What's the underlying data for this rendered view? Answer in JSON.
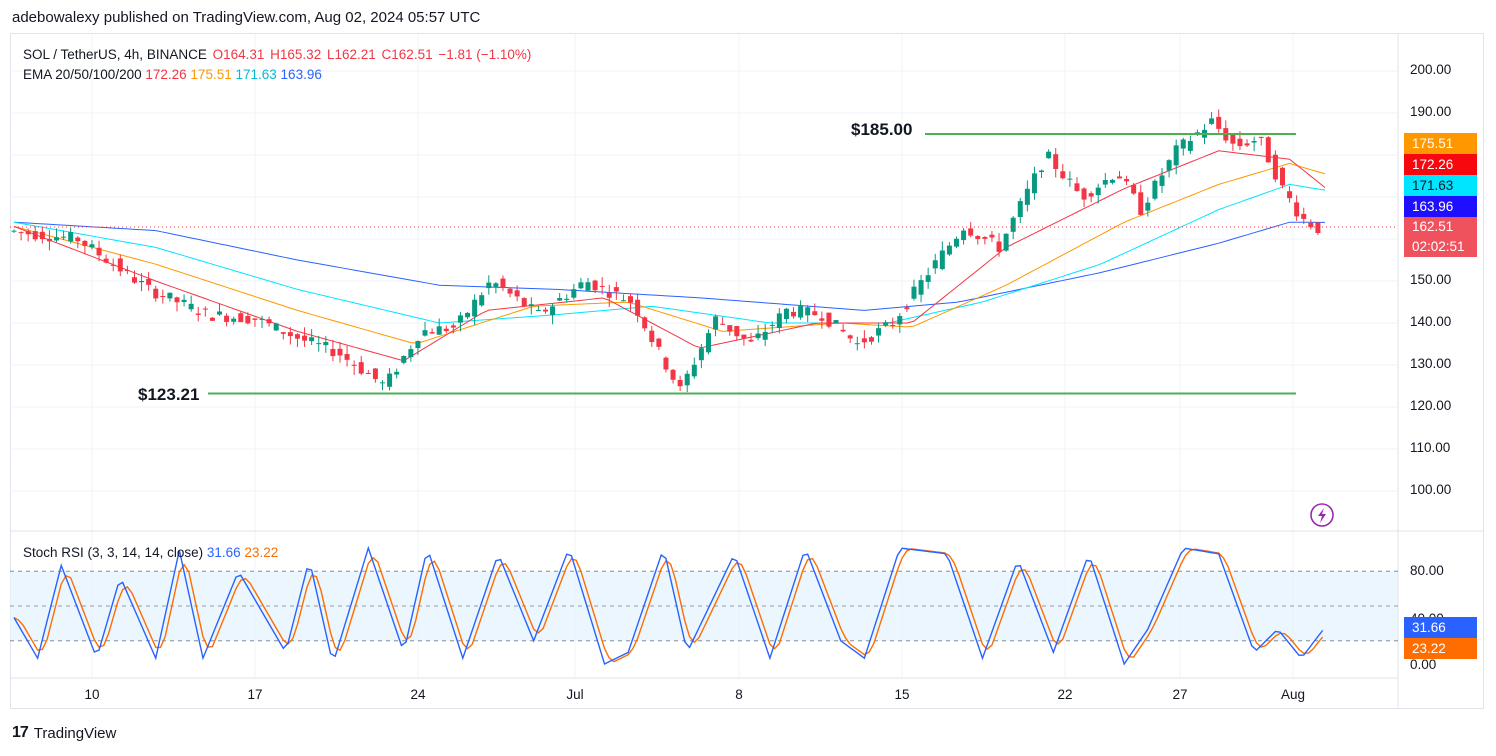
{
  "header": {
    "published": "adebowalexy published on TradingView.com, Aug 02, 2024 05:57 UTC"
  },
  "legend": {
    "symbol": "SOL / TetherUS, 4h, BINANCE",
    "open": "O164.31",
    "high": "H165.32",
    "low": "L162.21",
    "close": "C162.51",
    "change": "−1.81 (−1.10%)",
    "ema_label": "EMA 20/50/100/200",
    "ema20": "172.26",
    "ema50": "175.51",
    "ema100": "171.63",
    "ema200": "163.96"
  },
  "stoch": {
    "label": "Stoch RSI (3, 3, 14, 14, close)",
    "k": "31.66",
    "d": "23.22"
  },
  "levels": {
    "resistance": "$185.00",
    "support": "$123.21"
  },
  "price_axis": [
    "200.00",
    "190.00",
    "180.00",
    "170.00",
    "160.00",
    "150.00",
    "140.00",
    "130.00",
    "120.00",
    "110.00",
    "100.00"
  ],
  "stoch_axis": [
    "80.00",
    "40.00",
    "0.00"
  ],
  "badges": {
    "ema50": "175.51",
    "ema20": "172.26",
    "ema100": "171.63",
    "ema200": "163.96",
    "price": "162.51",
    "countdown": "02:02:51",
    "k": "31.66",
    "d": "23.22"
  },
  "time_axis": [
    "10",
    "17",
    "24",
    "Jul",
    "8",
    "15",
    "22",
    "27",
    "Aug"
  ],
  "footer": {
    "brand": "TradingView",
    "logo": "17"
  },
  "colors": {
    "up": "#089981",
    "down": "#f23645",
    "ema20": "#f23645",
    "ema50": "#ff9800",
    "ema100": "#00e5ff",
    "ema200": "#2962ff",
    "level": "#4caf50",
    "k": "#2962ff",
    "d": "#ff6d00",
    "band": "#e3f2fd"
  },
  "chart_data": {
    "type": "candlestick",
    "x_unit": "4h bars, Jun 2024 to Aug 02 2024",
    "ylim": [
      95,
      205
    ],
    "key_levels": [
      185.0,
      123.21
    ],
    "last": {
      "open": 164.31,
      "high": 165.32,
      "low": 162.21,
      "close": 162.51
    },
    "anchors": [
      {
        "x": 0,
        "p": 162
      },
      {
        "x": 30,
        "p": 160
      },
      {
        "x": 60,
        "p": 148
      },
      {
        "x": 85,
        "p": 142
      },
      {
        "x": 105,
        "p": 141
      },
      {
        "x": 125,
        "p": 136
      },
      {
        "x": 140,
        "p": 133
      },
      {
        "x": 160,
        "p": 125
      },
      {
        "x": 175,
        "p": 138
      },
      {
        "x": 190,
        "p": 139
      },
      {
        "x": 205,
        "p": 150
      },
      {
        "x": 225,
        "p": 142
      },
      {
        "x": 245,
        "p": 150
      },
      {
        "x": 265,
        "p": 145
      },
      {
        "x": 275,
        "p": 134
      },
      {
        "x": 285,
        "p": 124
      },
      {
        "x": 300,
        "p": 141
      },
      {
        "x": 315,
        "p": 135
      },
      {
        "x": 330,
        "p": 143
      },
      {
        "x": 345,
        "p": 142
      },
      {
        "x": 360,
        "p": 135
      },
      {
        "x": 375,
        "p": 140
      },
      {
        "x": 390,
        "p": 152
      },
      {
        "x": 405,
        "p": 163
      },
      {
        "x": 420,
        "p": 158
      },
      {
        "x": 440,
        "p": 180
      },
      {
        "x": 455,
        "p": 170
      },
      {
        "x": 470,
        "p": 176
      },
      {
        "x": 480,
        "p": 167
      },
      {
        "x": 495,
        "p": 181
      },
      {
        "x": 510,
        "p": 188
      },
      {
        "x": 520,
        "p": 182
      },
      {
        "x": 530,
        "p": 184
      },
      {
        "x": 540,
        "p": 172
      },
      {
        "x": 548,
        "p": 165
      },
      {
        "x": 555,
        "p": 162.5
      }
    ],
    "ema20": [
      {
        "x": 0,
        "p": 163
      },
      {
        "x": 60,
        "p": 150
      },
      {
        "x": 120,
        "p": 138
      },
      {
        "x": 165,
        "p": 131
      },
      {
        "x": 200,
        "p": 143
      },
      {
        "x": 250,
        "p": 146
      },
      {
        "x": 290,
        "p": 134
      },
      {
        "x": 340,
        "p": 140
      },
      {
        "x": 380,
        "p": 140
      },
      {
        "x": 420,
        "p": 158
      },
      {
        "x": 470,
        "p": 172
      },
      {
        "x": 510,
        "p": 181
      },
      {
        "x": 540,
        "p": 179
      },
      {
        "x": 555,
        "p": 172.26
      }
    ],
    "ema50": [
      {
        "x": 0,
        "p": 163
      },
      {
        "x": 60,
        "p": 154
      },
      {
        "x": 120,
        "p": 143
      },
      {
        "x": 170,
        "p": 135
      },
      {
        "x": 220,
        "p": 144
      },
      {
        "x": 260,
        "p": 145
      },
      {
        "x": 300,
        "p": 138
      },
      {
        "x": 350,
        "p": 140
      },
      {
        "x": 380,
        "p": 139
      },
      {
        "x": 420,
        "p": 149
      },
      {
        "x": 470,
        "p": 164
      },
      {
        "x": 510,
        "p": 173
      },
      {
        "x": 540,
        "p": 178
      },
      {
        "x": 555,
        "p": 175.51
      }
    ],
    "ema100": [
      {
        "x": 0,
        "p": 164
      },
      {
        "x": 60,
        "p": 158
      },
      {
        "x": 120,
        "p": 148
      },
      {
        "x": 180,
        "p": 140
      },
      {
        "x": 230,
        "p": 142
      },
      {
        "x": 270,
        "p": 144
      },
      {
        "x": 320,
        "p": 140
      },
      {
        "x": 370,
        "p": 140
      },
      {
        "x": 410,
        "p": 145
      },
      {
        "x": 460,
        "p": 154
      },
      {
        "x": 510,
        "p": 167
      },
      {
        "x": 540,
        "p": 173
      },
      {
        "x": 555,
        "p": 171.63
      }
    ],
    "ema200": [
      {
        "x": 0,
        "p": 164
      },
      {
        "x": 60,
        "p": 162
      },
      {
        "x": 120,
        "p": 155
      },
      {
        "x": 180,
        "p": 149
      },
      {
        "x": 230,
        "p": 148
      },
      {
        "x": 290,
        "p": 146
      },
      {
        "x": 360,
        "p": 143
      },
      {
        "x": 400,
        "p": 145
      },
      {
        "x": 460,
        "p": 152
      },
      {
        "x": 510,
        "p": 159
      },
      {
        "x": 540,
        "p": 164
      },
      {
        "x": 555,
        "p": 163.96
      }
    ],
    "stoch_k_pivots": [
      {
        "x": 0,
        "v": 40
      },
      {
        "x": 10,
        "v": 5
      },
      {
        "x": 20,
        "v": 85
      },
      {
        "x": 35,
        "v": 5
      },
      {
        "x": 45,
        "v": 75
      },
      {
        "x": 60,
        "v": 5
      },
      {
        "x": 70,
        "v": 98
      },
      {
        "x": 80,
        "v": 5
      },
      {
        "x": 95,
        "v": 80
      },
      {
        "x": 115,
        "v": 10
      },
      {
        "x": 125,
        "v": 90
      },
      {
        "x": 135,
        "v": 0
      },
      {
        "x": 150,
        "v": 100
      },
      {
        "x": 165,
        "v": 10
      },
      {
        "x": 175,
        "v": 100
      },
      {
        "x": 190,
        "v": 5
      },
      {
        "x": 205,
        "v": 95
      },
      {
        "x": 220,
        "v": 20
      },
      {
        "x": 235,
        "v": 100
      },
      {
        "x": 250,
        "v": 0
      },
      {
        "x": 260,
        "v": 10
      },
      {
        "x": 275,
        "v": 100
      },
      {
        "x": 285,
        "v": 10
      },
      {
        "x": 305,
        "v": 95
      },
      {
        "x": 320,
        "v": 5
      },
      {
        "x": 335,
        "v": 100
      },
      {
        "x": 350,
        "v": 20
      },
      {
        "x": 360,
        "v": 5
      },
      {
        "x": 375,
        "v": 100
      },
      {
        "x": 395,
        "v": 95
      },
      {
        "x": 410,
        "v": 5
      },
      {
        "x": 425,
        "v": 90
      },
      {
        "x": 440,
        "v": 10
      },
      {
        "x": 455,
        "v": 95
      },
      {
        "x": 470,
        "v": 0
      },
      {
        "x": 480,
        "v": 30
      },
      {
        "x": 495,
        "v": 100
      },
      {
        "x": 510,
        "v": 95
      },
      {
        "x": 525,
        "v": 10
      },
      {
        "x": 535,
        "v": 30
      },
      {
        "x": 545,
        "v": 5
      },
      {
        "x": 555,
        "v": 31.66
      }
    ]
  }
}
